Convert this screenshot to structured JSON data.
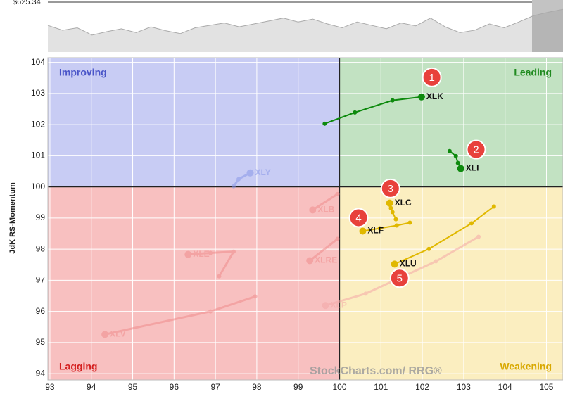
{
  "chart_data": {
    "type": "rrg",
    "y_label": "JdK RS-Momentum",
    "xlim": [
      92.95,
      105.4
    ],
    "ylim": [
      93.8,
      104.15
    ],
    "xticks": [
      93,
      94,
      95,
      96,
      97,
      98,
      99,
      100,
      101,
      102,
      103,
      104,
      105
    ],
    "yticks": [
      94,
      95,
      96,
      97,
      98,
      99,
      100,
      101,
      102,
      103,
      104
    ],
    "grid": true,
    "center": [
      100,
      100
    ],
    "quadrants": [
      {
        "name": "Improving",
        "color": "#4a55c8",
        "fill": "#c8ccf4"
      },
      {
        "name": "Leading",
        "color": "#1f8a1f",
        "fill": "#c2e2c2"
      },
      {
        "name": "Lagging",
        "color": "#d42020",
        "fill": "#f8c0c0"
      },
      {
        "name": "Weakening",
        "color": "#d8a800",
        "fill": "#fbeec0"
      }
    ],
    "series": [
      {
        "name": "XLK",
        "color": "#0e8a0e",
        "x": [
          99.64,
          100.37,
          101.28,
          101.98
        ],
        "y": [
          102.03,
          102.39,
          102.78,
          102.89
        ]
      },
      {
        "name": "XLI",
        "color": "#0e8a0e",
        "x": [
          102.66,
          102.81,
          102.86,
          102.93
        ],
        "y": [
          101.15,
          100.99,
          100.77,
          100.59
        ]
      },
      {
        "name": "XLC",
        "color": "#e0b800",
        "x": [
          101.36,
          101.28,
          101.24,
          101.21
        ],
        "y": [
          98.96,
          99.19,
          99.32,
          99.48
        ]
      },
      {
        "name": "XLF",
        "color": "#e0b800",
        "x": [
          101.7,
          101.38,
          100.97,
          100.56
        ],
        "y": [
          98.85,
          98.76,
          98.67,
          98.58
        ]
      },
      {
        "name": "XLU",
        "color": "#e0b800",
        "x": [
          103.73,
          103.19,
          102.16,
          101.33
        ],
        "y": [
          99.37,
          98.83,
          98.01,
          97.52
        ]
      },
      {
        "name": "XLY",
        "color": "#8a98e8",
        "faded": true,
        "x": [
          97.44,
          97.56,
          97.84
        ],
        "y": [
          100.02,
          100.25,
          100.45
        ]
      },
      {
        "name": "XLB",
        "color": "#f08c8c",
        "faded": true,
        "x": [
          99.95,
          99.35
        ],
        "y": [
          99.77,
          99.26
        ]
      },
      {
        "name": "XLE",
        "color": "#f08c8c",
        "faded": true,
        "x": [
          97.09,
          97.44,
          96.88,
          96.34
        ],
        "y": [
          97.13,
          97.92,
          97.88,
          97.83
        ]
      },
      {
        "name": "XLRE",
        "color": "#f08c8c",
        "faded": true,
        "x": [
          99.95,
          99.28
        ],
        "y": [
          98.33,
          97.63
        ]
      },
      {
        "name": "XLP",
        "color": "#f4a8a8",
        "faded": true,
        "x": [
          103.36,
          102.33,
          100.63,
          99.66
        ],
        "y": [
          98.4,
          97.61,
          96.57,
          96.19
        ]
      },
      {
        "name": "XLV",
        "color": "#f08c8c",
        "faded": true,
        "x": [
          97.96,
          96.88,
          94.33
        ],
        "y": [
          96.48,
          96.0,
          95.26
        ]
      }
    ],
    "annotations": [
      {
        "text": "1",
        "x": 102.23,
        "y": 103.52
      },
      {
        "text": "2",
        "x": 103.3,
        "y": 101.2
      },
      {
        "text": "3",
        "x": 101.23,
        "y": 99.95
      },
      {
        "text": "4",
        "x": 100.46,
        "y": 99.01
      },
      {
        "text": "5",
        "x": 101.45,
        "y": 97.07
      }
    ],
    "watermark": "StockCharts.com/ RRG®",
    "benchmark": {
      "label": "$625.34",
      "ylim": [
        0,
        100
      ],
      "values": [
        55,
        45,
        50,
        35,
        42,
        48,
        40,
        52,
        44,
        38,
        50,
        55,
        60,
        52,
        58,
        64,
        70,
        62,
        68,
        58,
        50,
        62,
        55,
        48,
        60,
        54,
        70,
        52,
        40,
        45,
        58,
        50,
        62,
        75,
        82,
        88
      ]
    }
  }
}
